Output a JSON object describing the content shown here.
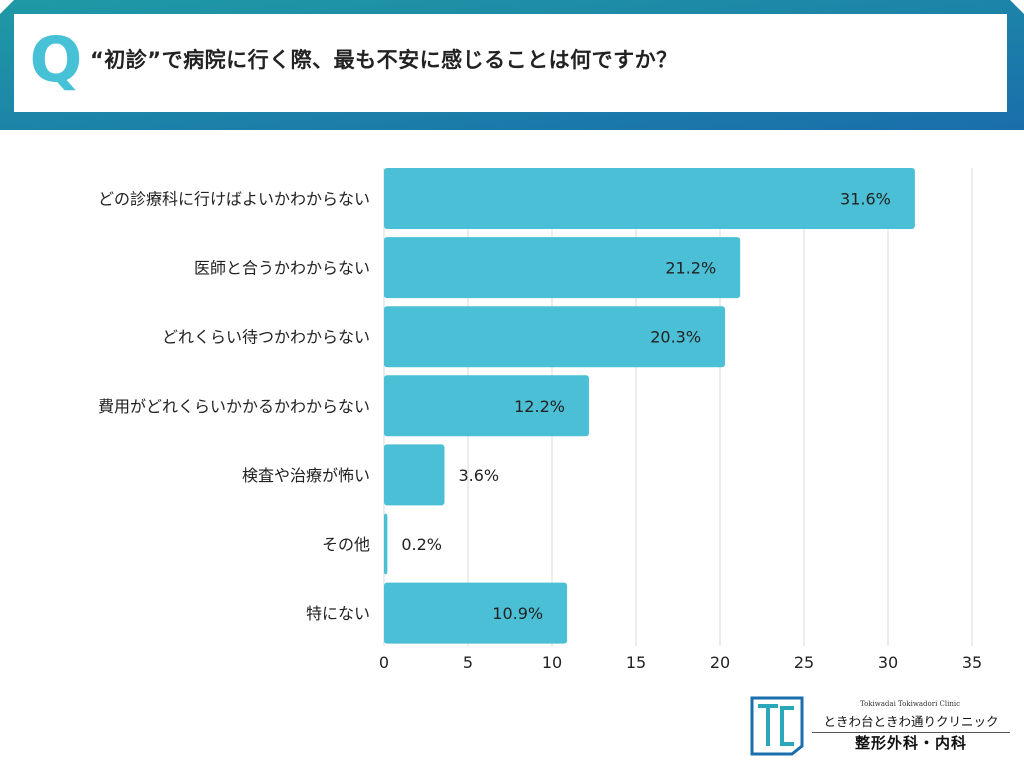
{
  "header": {
    "q_letter": "Q",
    "question": "“初診”で病院に行く際、最も不安に感じることは何ですか？"
  },
  "colors": {
    "bar": "#4bbfd5",
    "banner_start": "#1f9aa5",
    "banner_end": "#1a6eab",
    "accent": "#46c1d6",
    "grid": "#d9d9d9"
  },
  "chart_data": {
    "type": "bar",
    "orientation": "horizontal",
    "title": "“初診”で病院に行く際、最も不安に感じることは何ですか？",
    "categories": [
      "どの診療科に行けばよいかわからない",
      "医師と合うかわからない",
      "どれくらい待つかわからない",
      "費用がどれくらいかかるかわからない",
      "検査や治療が怖い",
      "その他",
      "特にない"
    ],
    "values": [
      31.6,
      21.2,
      20.3,
      12.2,
      3.6,
      0.2,
      10.9
    ],
    "value_labels": [
      "31.6%",
      "21.2%",
      "20.3%",
      "12.2%",
      "3.6%",
      "0.2%",
      "10.9%"
    ],
    "xlim": [
      0,
      35
    ],
    "xticks": [
      0,
      5,
      10,
      15,
      20,
      25,
      30,
      35
    ],
    "xlabel": "",
    "ylabel": "",
    "grid": true,
    "unit": "%"
  },
  "logo": {
    "subtitle": "Tokiwadai Tokiwadori Clinic",
    "name": "ときわ台ときわ通りクリニック",
    "department": "整形外科・内科"
  }
}
